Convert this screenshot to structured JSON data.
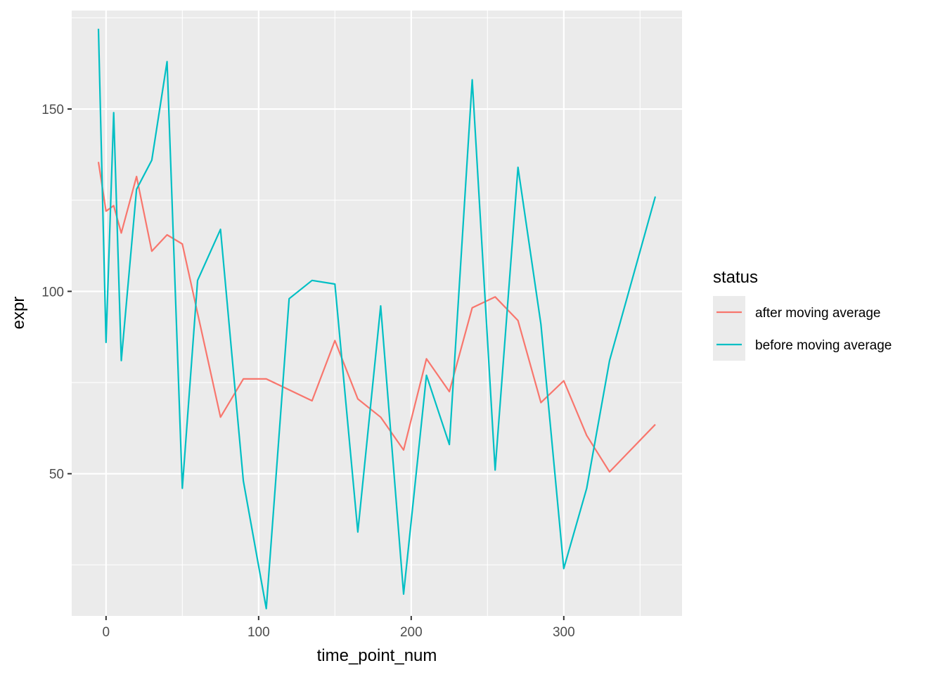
{
  "chart_data": {
    "type": "line",
    "xlabel": "time_point_num",
    "ylabel": "expr",
    "xlim": [
      -22.5,
      377.5
    ],
    "ylim": [
      11,
      177
    ],
    "x_ticks": [
      0,
      100,
      200,
      300
    ],
    "x_tick_labels": [
      "0",
      "100",
      "200",
      "300"
    ],
    "y_ticks": [
      50,
      100,
      150
    ],
    "y_tick_labels": [
      "50",
      "100",
      "150"
    ],
    "grid": true,
    "legend": {
      "title": "status",
      "position": "right"
    },
    "series": [
      {
        "name": "after moving average",
        "color": "#F8766D",
        "x": [
          -5,
          0,
          5,
          10,
          20,
          30,
          40,
          50,
          75,
          90,
          105,
          135,
          150,
          165,
          180,
          195,
          210,
          225,
          240,
          255,
          270,
          285,
          300,
          315,
          330,
          360
        ],
        "y": [
          135.5,
          122,
          123.5,
          116,
          131.5,
          111,
          115.5,
          113,
          65.5,
          76,
          76,
          70,
          86.5,
          70.5,
          65.5,
          56.5,
          81.5,
          72.5,
          95.5,
          98.5,
          92,
          69.5,
          75.5,
          60.5,
          50.5,
          63.5
        ]
      },
      {
        "name": "before moving average",
        "color": "#00BFC4",
        "x": [
          -5,
          0,
          5,
          10,
          20,
          30,
          40,
          50,
          60,
          75,
          90,
          105,
          120,
          135,
          150,
          165,
          180,
          195,
          210,
          225,
          240,
          255,
          270,
          285,
          300,
          315,
          330,
          360
        ],
        "y": [
          172,
          86,
          149,
          81,
          128,
          136,
          163,
          46,
          103,
          117,
          48,
          13,
          98,
          103,
          102,
          34,
          96,
          17,
          77,
          58,
          158,
          51,
          134,
          91,
          24,
          46,
          81,
          126
        ]
      }
    ]
  }
}
